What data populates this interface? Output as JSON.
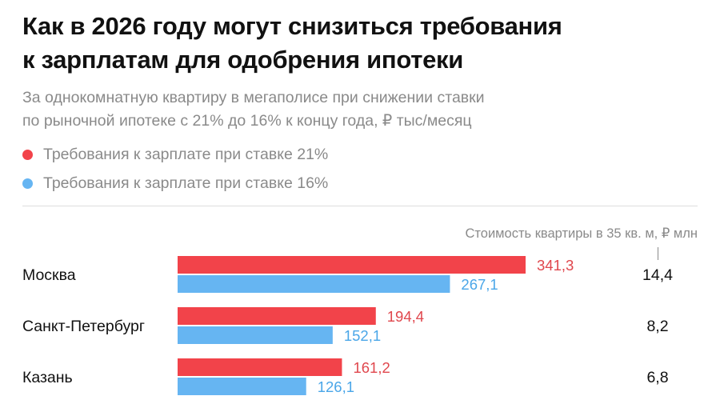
{
  "header": {
    "title_line1": "Как в 2026 году могут снизиться требования",
    "title_line2": "к зарплатам для одобрения ипотеки",
    "subtitle_line1": "За однокомнатную квартиру в мегаполисе при снижении ставки",
    "subtitle_line2": "по рыночной ипотеке с 21% до 16% к концу года, ₽ тыс/месяц"
  },
  "price_column": {
    "header": "Стоимость квартиры в 35 кв. м, ₽ млн",
    "values": [
      "14,4",
      "8,2",
      "6,8"
    ]
  },
  "chart_data": {
    "type": "bar",
    "orientation": "horizontal",
    "title": "Как в 2026 году могут снизиться требования к зарплатам для одобрения ипотеки",
    "subtitle": "За однокомнатную квартиру в мегаполисе при снижении ставки по рыночной ипотеке с 21% до 16% к концу года, ₽ тыс/месяц",
    "categories": [
      "Москва",
      "Санкт-Петербург",
      "Казань"
    ],
    "series": [
      {
        "name": "Требования к зарплате при ставке 21%",
        "color": "#f2434a",
        "values": [
          341.3,
          194.4,
          161.2
        ],
        "labels": [
          "341,3",
          "194,4",
          "161,2"
        ]
      },
      {
        "name": "Требования к зарплате при ставке 16%",
        "color": "#66b5f2",
        "values": [
          267.1,
          152.1,
          126.1
        ],
        "labels": [
          "267,1",
          "152,1",
          "126,1"
        ]
      }
    ],
    "legend_position": "top-left",
    "grid": false
  }
}
